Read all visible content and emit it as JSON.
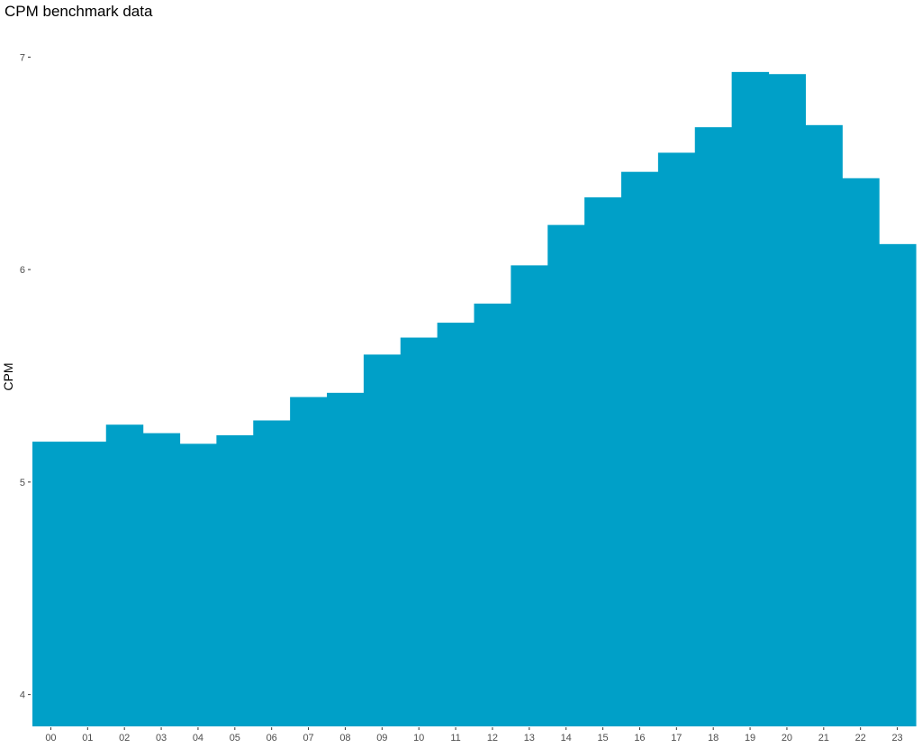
{
  "chart_data": {
    "type": "bar",
    "title": "CPM benchmark data",
    "xlabel": "",
    "ylabel": "CPM",
    "categories": [
      "00",
      "01",
      "02",
      "03",
      "04",
      "05",
      "06",
      "07",
      "08",
      "09",
      "10",
      "11",
      "12",
      "13",
      "14",
      "15",
      "16",
      "17",
      "18",
      "19",
      "20",
      "21",
      "22",
      "23"
    ],
    "values": [
      5.19,
      5.19,
      5.27,
      5.23,
      5.18,
      5.22,
      5.29,
      5.4,
      5.42,
      5.6,
      5.68,
      5.75,
      5.84,
      6.02,
      6.21,
      6.34,
      6.46,
      6.55,
      6.67,
      6.93,
      6.92,
      6.68,
      6.43,
      6.12
    ],
    "ylim": [
      3.85,
      7.15
    ],
    "y_ticks": [
      4,
      5,
      6,
      7
    ],
    "grid": false,
    "legend": "none",
    "bar_color": "#00A0C8"
  }
}
